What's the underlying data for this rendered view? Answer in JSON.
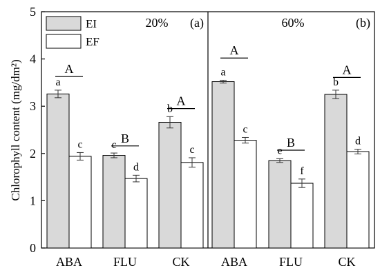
{
  "chart_data": {
    "type": "bar",
    "ylabel": "Chlorophyll content (mg/dm²)",
    "ylim": [
      0,
      5
    ],
    "yticks": [
      0,
      1,
      2,
      3,
      4,
      5
    ],
    "legend": {
      "position": "top-left",
      "entries": [
        {
          "name": "EI",
          "fill": "#d9d9d9"
        },
        {
          "name": "EF",
          "fill": "#ffffff"
        }
      ]
    },
    "panels": [
      {
        "label": "(a)",
        "title": "20%",
        "categories": [
          "ABA",
          "FLU",
          "CK"
        ],
        "series": [
          {
            "name": "EI",
            "values": [
              3.26,
              1.96,
              2.66
            ],
            "errors": [
              0.08,
              0.05,
              0.12
            ],
            "letters": [
              "a",
              "c",
              "b"
            ]
          },
          {
            "name": "EF",
            "values": [
              1.94,
              1.47,
              1.81
            ],
            "errors": [
              0.08,
              0.07,
              0.1
            ],
            "letters": [
              "c",
              "d",
              "c"
            ]
          }
        ],
        "group_letters": [
          "A",
          "B",
          "A"
        ],
        "group_letter_y": [
          3.63,
          2.16,
          2.95
        ]
      },
      {
        "label": "(b)",
        "title": "60%",
        "categories": [
          "ABA",
          "FLU",
          "CK"
        ],
        "series": [
          {
            "name": "EI",
            "values": [
              3.52,
              1.85,
              3.25
            ],
            "errors": [
              0.03,
              0.04,
              0.09
            ],
            "letters": [
              "a",
              "e",
              "b"
            ]
          },
          {
            "name": "EF",
            "values": [
              2.28,
              1.37,
              2.04
            ],
            "errors": [
              0.06,
              0.09,
              0.05
            ],
            "letters": [
              "c",
              "f",
              "d"
            ]
          }
        ],
        "group_letters": [
          "A",
          "B",
          "A"
        ],
        "group_letter_y": [
          4.02,
          2.07,
          3.61
        ]
      }
    ]
  }
}
